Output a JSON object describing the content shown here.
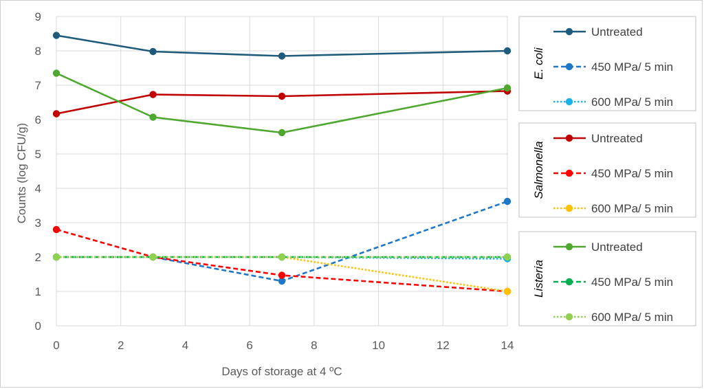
{
  "chart_data": {
    "type": "line",
    "xlabel": "Days of storage at 4 ºC",
    "ylabel": "Counts (log CFU/g)",
    "xlim": [
      0,
      14
    ],
    "ylim": [
      0,
      9
    ],
    "x_ticks": [
      "0",
      "2",
      "4",
      "6",
      "8",
      "10",
      "12",
      "14"
    ],
    "y_ticks": [
      "0",
      "1",
      "2",
      "3",
      "4",
      "5",
      "6",
      "7",
      "8",
      "9"
    ],
    "grid": "vertical and horizontal",
    "legend_position": "right",
    "x": [
      0,
      3,
      7,
      14
    ],
    "groups": [
      {
        "label": "E. coli",
        "series": [
          {
            "name": "Untreated",
            "values": [
              8.45,
              7.98,
              7.85,
              8.0
            ],
            "color": "#1f5b7a",
            "style": "solid"
          },
          {
            "name": "450 MPa/ 5 min",
            "values": [
              2.0,
              2.0,
              1.3,
              3.62
            ],
            "color": "#1f77c8",
            "style": "dashed"
          },
          {
            "name": "600 MPa/ 5 min",
            "values": [
              2.0,
              2.0,
              2.0,
              1.95
            ],
            "color": "#1ab0e8",
            "style": "dotted"
          }
        ]
      },
      {
        "label": "Salmonella",
        "series": [
          {
            "name": "Untreated",
            "values": [
              6.17,
              6.73,
              6.68,
              6.83
            ],
            "color": "#c00000",
            "style": "solid"
          },
          {
            "name": "450 MPa/ 5 min",
            "values": [
              2.8,
              2.0,
              1.47,
              1.0
            ],
            "color": "#ff0000",
            "style": "dashed"
          },
          {
            "name": "600 MPa/ 5 min",
            "values": [
              2.0,
              2.0,
              2.0,
              1.0
            ],
            "color": "#ffc000",
            "style": "dotted"
          }
        ]
      },
      {
        "label": "Listeria",
        "series": [
          {
            "name": "Untreated",
            "values": [
              7.35,
              6.07,
              5.62,
              6.92
            ],
            "color": "#4ea72e",
            "style": "solid"
          },
          {
            "name": "450 MPa/ 5 min",
            "values": [
              2.0,
              2.0,
              2.0,
              2.0
            ],
            "color": "#00b050",
            "style": "dashed"
          },
          {
            "name": "600 MPa/ 5 min",
            "values": [
              2.0,
              2.0,
              2.0,
              2.0
            ],
            "color": "#92d050",
            "style": "dotted"
          }
        ]
      }
    ]
  }
}
